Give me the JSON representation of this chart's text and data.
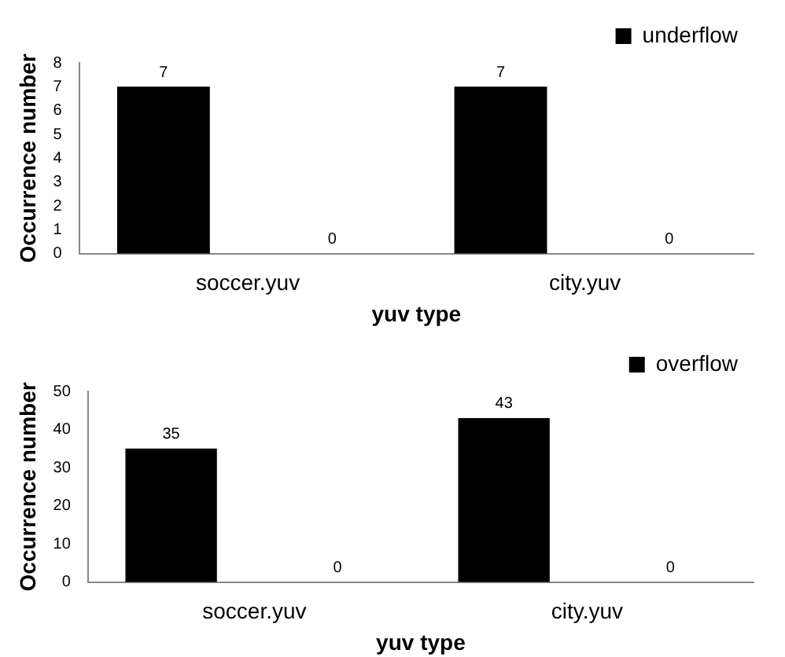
{
  "chart_data": [
    {
      "type": "bar",
      "xlabel": "yuv type",
      "ylabel": "Occurrence number",
      "categories": [
        "soccer.yuv",
        "city.yuv"
      ],
      "series": [
        {
          "name": "underflow",
          "color": "#000000",
          "values": [
            7,
            7
          ]
        },
        {
          "color": "#000000",
          "values": [
            0,
            0
          ]
        }
      ],
      "ylim": [
        0,
        8
      ],
      "yticks": [
        0,
        1,
        2,
        3,
        4,
        5,
        6,
        7,
        8
      ],
      "data_labels": true,
      "legend": "top right",
      "grid": false
    },
    {
      "type": "bar",
      "xlabel": "yuv type",
      "ylabel": "Occurrence number",
      "categories": [
        "soccer.yuv",
        "city.yuv"
      ],
      "series": [
        {
          "name": "overflow",
          "color": "#000000",
          "values": [
            35,
            43
          ]
        },
        {
          "color": "#000000",
          "values": [
            0,
            0
          ]
        }
      ],
      "ylim": [
        0,
        50
      ],
      "yticks": [
        0,
        10,
        20,
        30,
        40,
        50
      ],
      "data_labels": true,
      "legend": "top right",
      "grid": false
    }
  ]
}
